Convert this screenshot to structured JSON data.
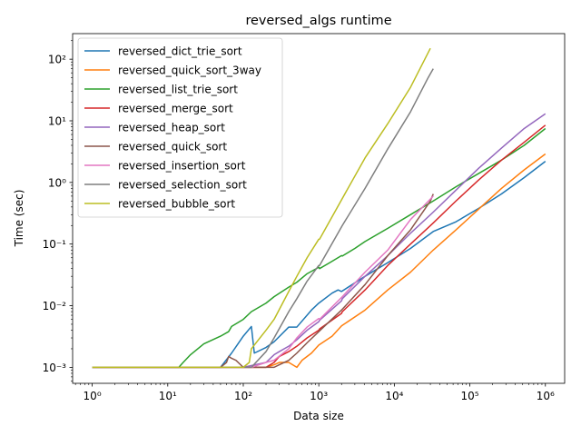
{
  "chart_data": {
    "type": "line",
    "title": "reversed_algs runtime",
    "xlabel": "Data size",
    "ylabel": "Time (sec)",
    "x_scale": "log",
    "y_scale": "log",
    "xlim": [
      0.55,
      1800000
    ],
    "ylim": [
      0.00055,
      260
    ],
    "x_ticks": [
      {
        "value": 1,
        "label": "10⁰"
      },
      {
        "value": 10,
        "label": "10¹"
      },
      {
        "value": 100,
        "label": "10²"
      },
      {
        "value": 1000,
        "label": "10³"
      },
      {
        "value": 10000,
        "label": "10⁴"
      },
      {
        "value": 100000,
        "label": "10⁵"
      },
      {
        "value": 1000000,
        "label": "10⁶"
      }
    ],
    "y_ticks": [
      {
        "value": 0.001,
        "label": "10⁻³"
      },
      {
        "value": 0.01,
        "label": "10⁻²"
      },
      {
        "value": 0.1,
        "label": "10⁻¹"
      },
      {
        "value": 1,
        "label": "10⁰"
      },
      {
        "value": 10,
        "label": "10¹"
      },
      {
        "value": 100,
        "label": "10²"
      }
    ],
    "grid": false,
    "legend_position": "top-left",
    "series": [
      {
        "name": "reversed_dict_trie_sort",
        "color": "#1f77b4",
        "x": [
          1,
          10,
          50,
          70,
          100,
          128,
          140,
          200,
          256,
          400,
          512,
          800,
          1000,
          1500,
          1800,
          2000,
          4096,
          8192,
          16384,
          25000,
          32768,
          65536,
          131072,
          262144,
          524288,
          1000000
        ],
        "y": [
          0.001,
          0.001,
          0.001,
          0.0017,
          0.0032,
          0.0046,
          0.0017,
          0.0021,
          0.0026,
          0.0045,
          0.0045,
          0.0085,
          0.011,
          0.016,
          0.018,
          0.017,
          0.03,
          0.05,
          0.085,
          0.125,
          0.16,
          0.23,
          0.38,
          0.65,
          1.2,
          2.2
        ]
      },
      {
        "name": "reversed_quick_sort_3way",
        "color": "#ff7f0e",
        "x": [
          1,
          10,
          100,
          200,
          256,
          300,
          400,
          512,
          600,
          800,
          1000,
          1500,
          2000,
          4096,
          8192,
          16384,
          32768,
          65536,
          131072,
          262144,
          524288,
          1000000
        ],
        "y": [
          0.001,
          0.001,
          0.001,
          0.001,
          0.0011,
          0.0012,
          0.0012,
          0.001,
          0.0013,
          0.0017,
          0.0023,
          0.0032,
          0.0047,
          0.0085,
          0.018,
          0.035,
          0.08,
          0.17,
          0.37,
          0.8,
          1.6,
          2.9
        ]
      },
      {
        "name": "reversed_list_trie_sort",
        "color": "#2ca02c",
        "x": [
          1,
          10,
          14,
          16,
          20,
          30,
          50,
          64,
          70,
          100,
          128,
          200,
          256,
          400,
          512,
          700,
          1000,
          1024,
          1400,
          2000,
          2048,
          3000,
          4096,
          8192,
          16384,
          32768,
          65536,
          131072,
          262144,
          524288,
          1000000
        ],
        "y": [
          0.001,
          0.001,
          0.001,
          0.0012,
          0.0016,
          0.0024,
          0.0032,
          0.0038,
          0.0046,
          0.006,
          0.008,
          0.011,
          0.014,
          0.02,
          0.024,
          0.033,
          0.042,
          0.04,
          0.05,
          0.065,
          0.064,
          0.085,
          0.11,
          0.18,
          0.3,
          0.5,
          0.85,
          1.4,
          2.3,
          4.0,
          7.5
        ]
      },
      {
        "name": "reversed_merge_sort",
        "color": "#d62728",
        "x": [
          1,
          10,
          100,
          200,
          256,
          300,
          400,
          512,
          700,
          1000,
          1024,
          2000,
          2048,
          4096,
          8192,
          16384,
          32768,
          65536,
          131072,
          262144,
          524288,
          1000000
        ],
        "y": [
          0.001,
          0.001,
          0.001,
          0.001,
          0.0012,
          0.0015,
          0.0018,
          0.0022,
          0.003,
          0.004,
          0.0042,
          0.0075,
          0.008,
          0.018,
          0.045,
          0.1,
          0.22,
          0.5,
          1.1,
          2.3,
          4.5,
          8.5
        ]
      },
      {
        "name": "reversed_heap_sort",
        "color": "#9467bd",
        "x": [
          1,
          10,
          100,
          200,
          256,
          300,
          400,
          512,
          700,
          1000,
          1024,
          2000,
          2048,
          4096,
          8192,
          16384,
          32768,
          65536,
          131072,
          262144,
          524288,
          1000000
        ],
        "y": [
          0.001,
          0.001,
          0.001,
          0.0012,
          0.0016,
          0.0018,
          0.0022,
          0.0028,
          0.004,
          0.0055,
          0.0058,
          0.012,
          0.013,
          0.03,
          0.065,
          0.15,
          0.33,
          0.75,
          1.7,
          3.6,
          7.5,
          13
        ]
      },
      {
        "name": "reversed_quick_sort",
        "color": "#8c564b",
        "x": [
          1,
          10,
          50,
          60,
          64,
          70,
          80,
          100,
          128,
          200,
          256,
          300,
          400,
          512,
          700,
          1000,
          2000,
          4096,
          8192,
          16384,
          30000,
          32768
        ],
        "y": [
          0.001,
          0.001,
          0.001,
          0.0012,
          0.0015,
          0.0014,
          0.0013,
          0.001,
          0.001,
          0.001,
          0.001,
          0.0011,
          0.0013,
          0.0017,
          0.0025,
          0.0038,
          0.0085,
          0.022,
          0.065,
          0.17,
          0.5,
          0.65
        ]
      },
      {
        "name": "reversed_insertion_sort",
        "color": "#e377c2",
        "x": [
          1,
          10,
          100,
          128,
          200,
          256,
          400,
          512,
          700,
          1000,
          1024,
          2048,
          4096,
          8192,
          16384,
          32768
        ],
        "y": [
          0.001,
          0.001,
          0.001,
          0.001,
          0.0012,
          0.0013,
          0.002,
          0.003,
          0.0045,
          0.0062,
          0.006,
          0.014,
          0.035,
          0.08,
          0.25,
          0.6
        ]
      },
      {
        "name": "reversed_selection_sort",
        "color": "#7f7f7f",
        "x": [
          1,
          10,
          100,
          128,
          200,
          256,
          400,
          512,
          700,
          1000,
          1024,
          2048,
          4096,
          8192,
          16384,
          28000,
          32768
        ],
        "y": [
          0.001,
          0.001,
          0.001,
          0.001,
          0.0018,
          0.003,
          0.008,
          0.013,
          0.025,
          0.045,
          0.045,
          0.2,
          0.8,
          3.5,
          14,
          50,
          70
        ]
      },
      {
        "name": "reversed_bubble_sort",
        "color": "#bcbd22",
        "x": [
          1,
          10,
          100,
          120,
          128,
          200,
          256,
          400,
          512,
          700,
          1000,
          1024,
          2048,
          4096,
          8192,
          16384,
          30000
        ],
        "y": [
          0.001,
          0.001,
          0.001,
          0.0012,
          0.002,
          0.004,
          0.006,
          0.017,
          0.03,
          0.06,
          0.12,
          0.12,
          0.55,
          2.5,
          9,
          35,
          150
        ]
      }
    ]
  }
}
